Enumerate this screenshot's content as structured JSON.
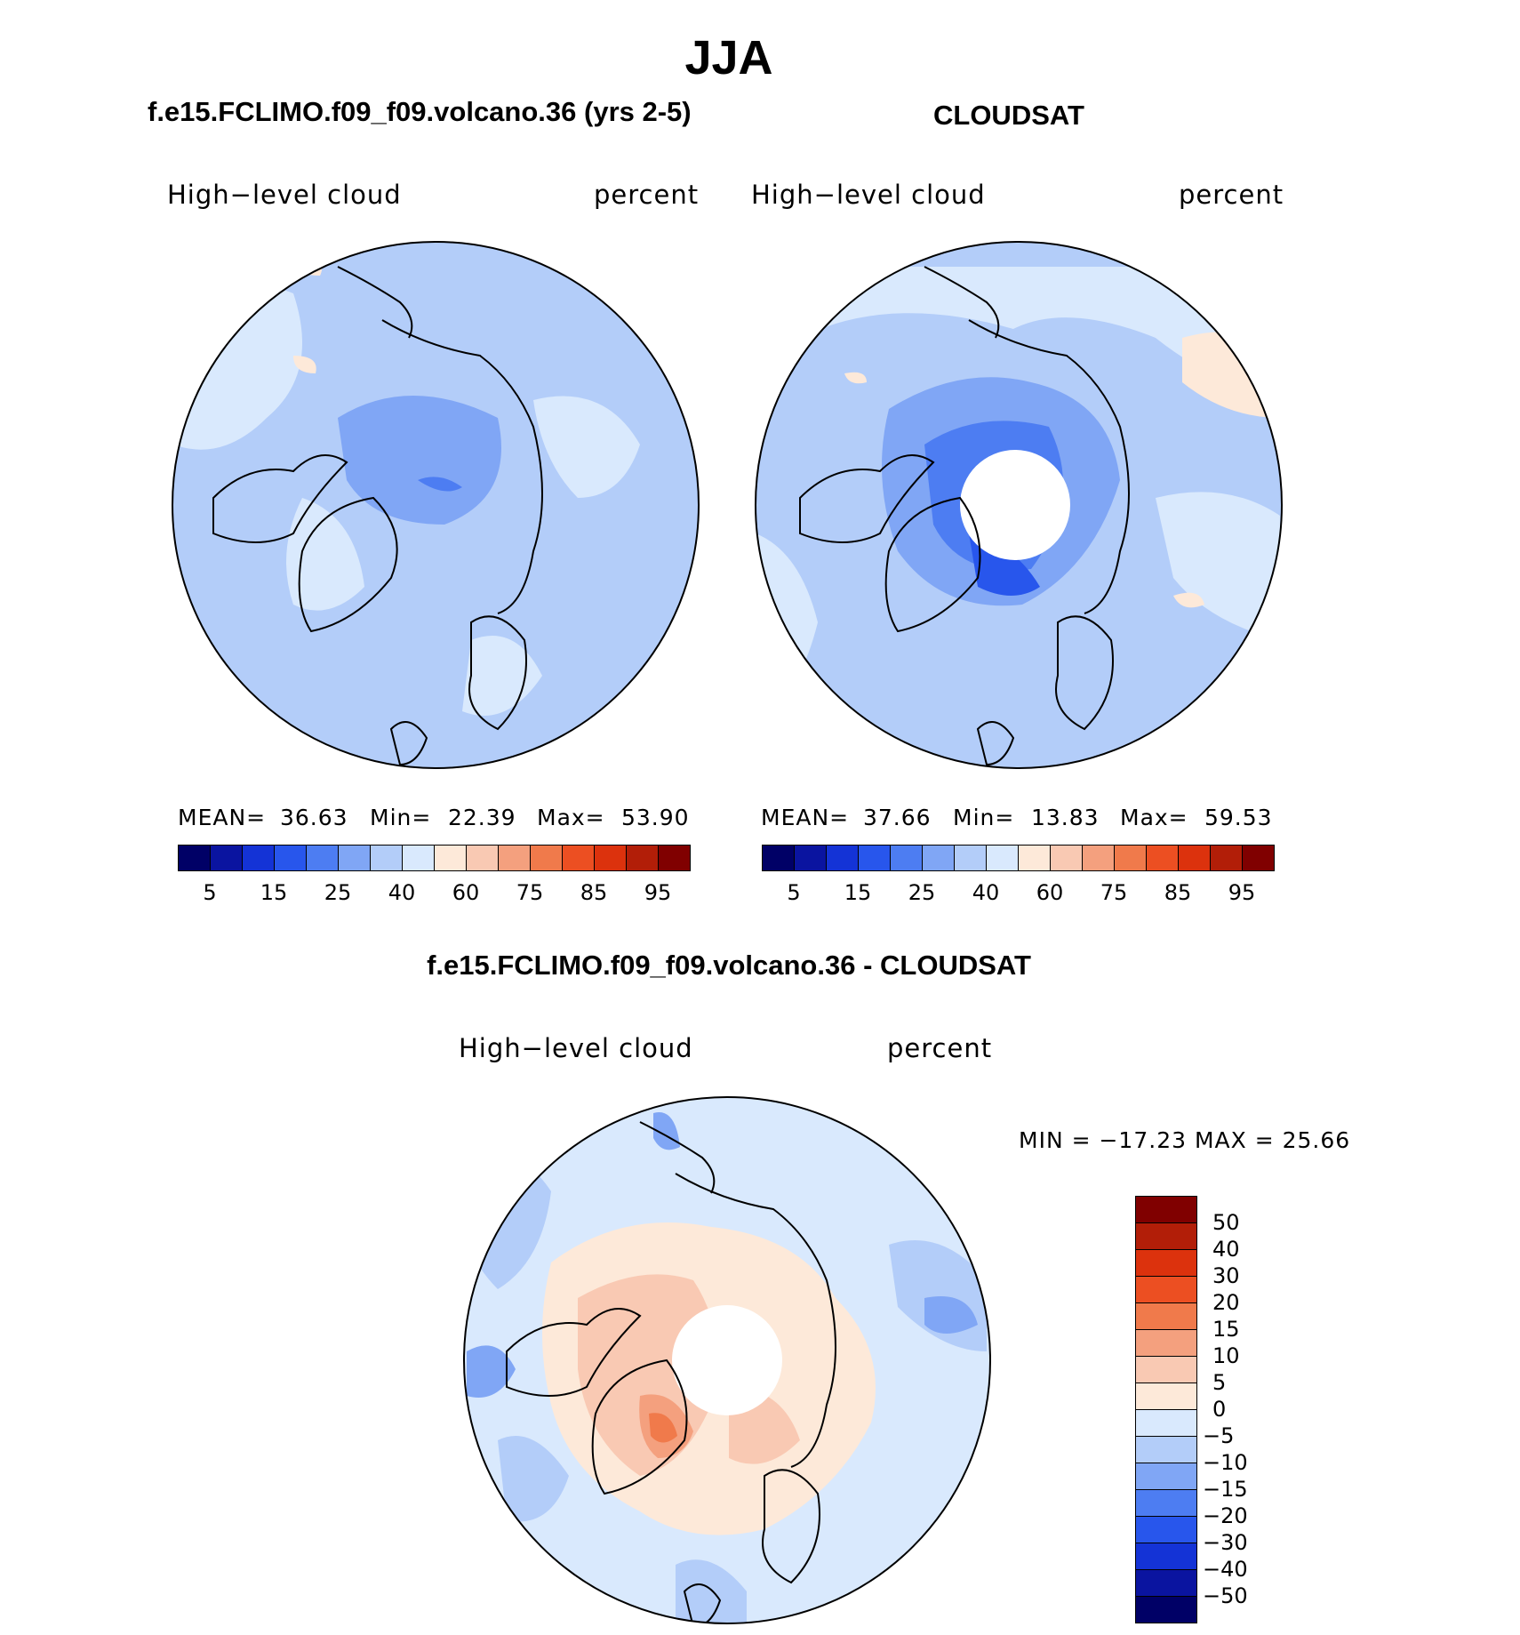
{
  "chart_data": {
    "type": "polar-contour-map",
    "season": "JJA",
    "panels": [
      {
        "id": "model",
        "title": "f.e15.FCLIMO.f09_f09.volcano.36 (yrs 2-5)",
        "variable": "High−level cloud",
        "units": "percent",
        "stats": {
          "mean_label": "MEAN=",
          "mean": "36.63",
          "min_label": "Min=",
          "min": "22.39",
          "max_label": "Max=",
          "max": "53.90"
        },
        "colorbar_ticks": [
          "5",
          "15",
          "25",
          "40",
          "60",
          "75",
          "85",
          "95"
        ]
      },
      {
        "id": "obs",
        "title": "CLOUDSAT",
        "variable": "High−level cloud",
        "units": "percent",
        "stats": {
          "mean_label": "MEAN=",
          "mean": "37.66",
          "min_label": "Min=",
          "min": "13.83",
          "max_label": "Max=",
          "max": "59.53"
        },
        "colorbar_ticks": [
          "5",
          "15",
          "25",
          "40",
          "60",
          "75",
          "85",
          "95"
        ]
      },
      {
        "id": "diff",
        "title": "f.e15.FCLIMO.f09_f09.volcano.36 - CLOUDSAT",
        "variable": "High−level cloud",
        "units": "percent",
        "stats": {
          "text": "MIN = −17.23 MAX =   25.66"
        },
        "colorbar_ticks": [
          "50",
          "40",
          "30",
          "20",
          "15",
          "10",
          "5",
          "0",
          "−5",
          "−10",
          "−15",
          "−20",
          "−30",
          "−40",
          "−50"
        ]
      }
    ],
    "colormap": [
      "#000066",
      "#0a14a0",
      "#1433d6",
      "#2856ec",
      "#4d7df2",
      "#80a6f5",
      "#b3cdf9",
      "#d9e9fd",
      "#fde9d9",
      "#f9c9b3",
      "#f4a07e",
      "#f07a4b",
      "#ec4f22",
      "#dc320d",
      "#b21e08",
      "#800000"
    ]
  }
}
